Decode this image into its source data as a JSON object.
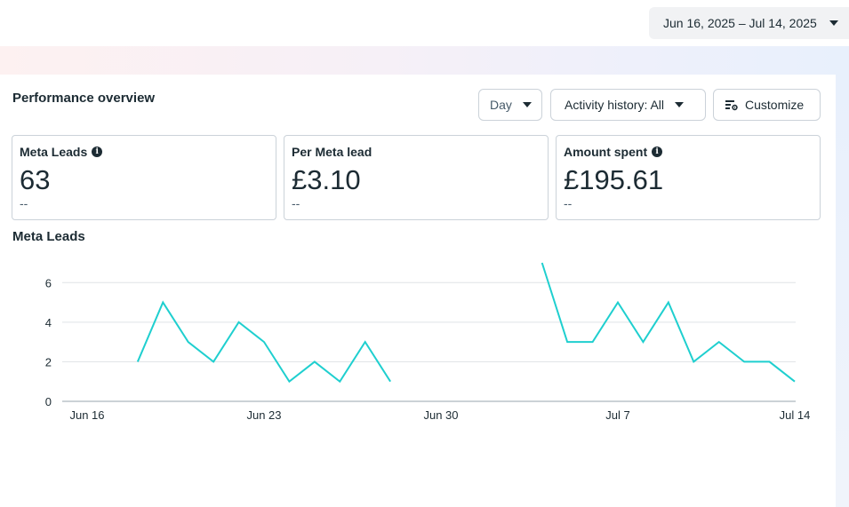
{
  "date_range": {
    "label": "Jun 16, 2025 – Jul 14, 2025"
  },
  "overview": {
    "title": "Performance overview",
    "controls": {
      "day_label": "Day",
      "activity_label": "Activity history: All",
      "customize_label": "Customize"
    },
    "cards": [
      {
        "label": "Meta Leads",
        "value": "63",
        "change": "--",
        "info": true
      },
      {
        "label": "Per Meta lead",
        "value": "£3.10",
        "change": "--",
        "info": false
      },
      {
        "label": "Amount spent",
        "value": "£195.61",
        "change": "--",
        "info": true
      }
    ]
  },
  "chart_data": {
    "type": "line",
    "title": "Meta Leads",
    "xlabel": "",
    "ylabel": "",
    "ylim": [
      0,
      7
    ],
    "y_ticks": [
      0,
      2,
      4,
      6
    ],
    "x_ticks": [
      "Jun 16",
      "Jun 23",
      "Jun 30",
      "Jul 7",
      "Jul 14"
    ],
    "grid": true,
    "legend": "none",
    "color": "#1fcfcf",
    "series": [
      {
        "x": [
          "2025-06-16",
          "2025-06-17",
          "2025-06-18",
          "2025-06-19",
          "2025-06-20",
          "2025-06-21",
          "2025-06-22",
          "2025-06-23",
          "2025-06-24",
          "2025-06-25",
          "2025-06-26",
          "2025-06-27",
          "2025-06-28",
          "2025-06-29",
          "2025-06-30",
          "2025-07-01",
          "2025-07-02",
          "2025-07-03",
          "2025-07-04",
          "2025-07-05",
          "2025-07-06",
          "2025-07-07",
          "2025-07-08",
          "2025-07-09",
          "2025-07-10",
          "2025-07-11",
          "2025-07-12",
          "2025-07-13",
          "2025-07-14"
        ],
        "values": [
          null,
          null,
          2,
          5,
          3,
          2,
          4,
          3,
          1,
          2,
          1,
          3,
          1,
          null,
          null,
          null,
          null,
          null,
          7,
          3,
          3,
          5,
          3,
          5,
          2,
          3,
          2,
          2,
          1
        ]
      }
    ]
  },
  "colors": {
    "accent": "#1fcfcf",
    "text": "#1c2b33",
    "border": "#cbd2d9"
  },
  "icons": {
    "info": "info-icon",
    "customize": "sliders-gear-icon",
    "caret": "caret-down-icon"
  }
}
